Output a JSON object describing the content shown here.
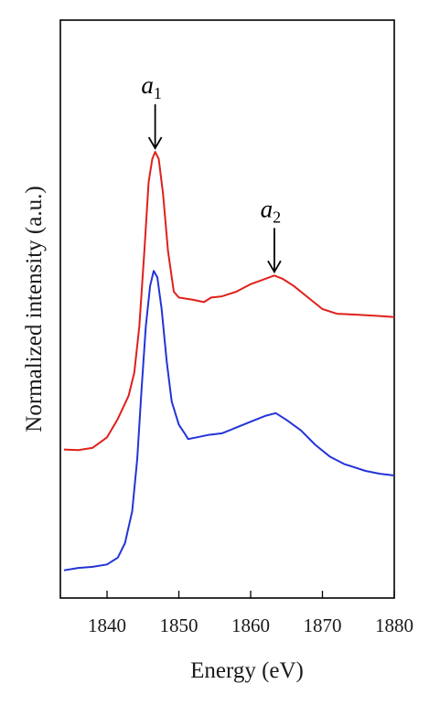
{
  "chart_data": {
    "type": "line",
    "xlabel": "Energy (eV)",
    "ylabel": "Normalized intensity (a.u.)",
    "xlim": [
      1833.5,
      1880
    ],
    "ylim": [
      0,
      1
    ],
    "x_ticks": [
      1840,
      1850,
      1860,
      1870,
      1880
    ],
    "y_ticks": [],
    "grid": false,
    "legend": "none",
    "series": [
      {
        "color": "#e0201b",
        "points": [
          [
            1834.0,
            0.257
          ],
          [
            1836.0,
            0.256
          ],
          [
            1838.0,
            0.26
          ],
          [
            1840.0,
            0.278
          ],
          [
            1841.5,
            0.31
          ],
          [
            1843.0,
            0.35
          ],
          [
            1843.8,
            0.39
          ],
          [
            1844.5,
            0.47
          ],
          [
            1845.2,
            0.6
          ],
          [
            1845.8,
            0.72
          ],
          [
            1846.3,
            0.76
          ],
          [
            1846.7,
            0.772
          ],
          [
            1847.2,
            0.76
          ],
          [
            1847.8,
            0.7
          ],
          [
            1848.5,
            0.6
          ],
          [
            1849.3,
            0.53
          ],
          [
            1850.0,
            0.52
          ],
          [
            1851.0,
            0.518
          ],
          [
            1852.0,
            0.516
          ],
          [
            1853.5,
            0.512
          ],
          [
            1854.5,
            0.52
          ],
          [
            1856.0,
            0.522
          ],
          [
            1858.0,
            0.53
          ],
          [
            1860.0,
            0.543
          ],
          [
            1862.0,
            0.552
          ],
          [
            1863.3,
            0.558
          ],
          [
            1864.5,
            0.552
          ],
          [
            1866.0,
            0.54
          ],
          [
            1868.0,
            0.52
          ],
          [
            1870.0,
            0.5
          ],
          [
            1872.0,
            0.492
          ],
          [
            1875.0,
            0.49
          ],
          [
            1878.0,
            0.488
          ],
          [
            1880.0,
            0.486
          ]
        ]
      },
      {
        "color": "#2433d8",
        "points": [
          [
            1834.0,
            0.048
          ],
          [
            1836.0,
            0.052
          ],
          [
            1838.0,
            0.054
          ],
          [
            1840.0,
            0.058
          ],
          [
            1841.5,
            0.07
          ],
          [
            1842.5,
            0.095
          ],
          [
            1843.5,
            0.15
          ],
          [
            1844.2,
            0.24
          ],
          [
            1844.8,
            0.36
          ],
          [
            1845.4,
            0.47
          ],
          [
            1846.0,
            0.54
          ],
          [
            1846.5,
            0.566
          ],
          [
            1847.0,
            0.555
          ],
          [
            1847.6,
            0.5
          ],
          [
            1848.3,
            0.41
          ],
          [
            1849.0,
            0.34
          ],
          [
            1850.0,
            0.3
          ],
          [
            1850.8,
            0.285
          ],
          [
            1851.3,
            0.275
          ],
          [
            1852.5,
            0.278
          ],
          [
            1854.0,
            0.282
          ],
          [
            1856.0,
            0.285
          ],
          [
            1858.0,
            0.295
          ],
          [
            1860.0,
            0.305
          ],
          [
            1862.0,
            0.315
          ],
          [
            1863.5,
            0.32
          ],
          [
            1865.0,
            0.308
          ],
          [
            1867.0,
            0.29
          ],
          [
            1869.0,
            0.265
          ],
          [
            1871.0,
            0.245
          ],
          [
            1873.0,
            0.232
          ],
          [
            1876.0,
            0.22
          ],
          [
            1878.0,
            0.215
          ],
          [
            1880.0,
            0.212
          ]
        ]
      }
    ],
    "annotations": [
      {
        "letter": "a",
        "subscript": "1",
        "x": 1846.7,
        "y": 0.772
      },
      {
        "letter": "a",
        "subscript": "2",
        "x": 1863.3,
        "y": 0.558
      }
    ]
  }
}
